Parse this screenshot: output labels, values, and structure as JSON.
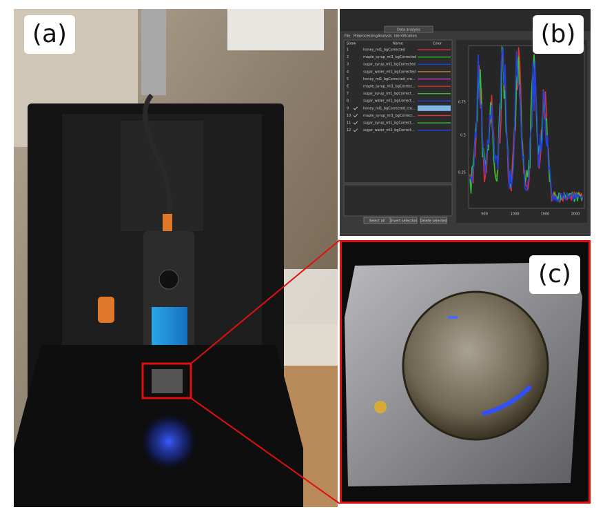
{
  "panels": {
    "a": {
      "label": "(a)"
    },
    "b": {
      "label": "(b)",
      "window_title": "Data analysis",
      "menu": [
        "File",
        "Preprocessing",
        "Analysis",
        "Identification"
      ],
      "table": {
        "headers": [
          "Show",
          "Name",
          "Color"
        ],
        "rows": [
          {
            "index": "1",
            "name": "honey_ml1_bgCorrected",
            "color": "#e03030",
            "checked": false
          },
          {
            "index": "2",
            "name": "maple_syrup_ml1_bgCorrected",
            "color": "#30c030",
            "checked": false
          },
          {
            "index": "3",
            "name": "sugar_syrup_ml1_bgCorrected",
            "color": "#2040e0",
            "checked": false
          },
          {
            "index": "4",
            "name": "sugar_water_ml1_bgCorrected",
            "color": "#c08020",
            "checked": false
          },
          {
            "index": "5",
            "name": "honey_ml1_bgCorrected_cro...",
            "color": "#d040d0",
            "checked": false
          },
          {
            "index": "6",
            "name": "maple_syrup_ml1_bgCorrect...",
            "color": "#e03030",
            "checked": false
          },
          {
            "index": "7",
            "name": "sugar_syrup_ml1_bgCorrect...",
            "color": "#30c030",
            "checked": false
          },
          {
            "index": "8",
            "name": "sugar_water_ml1_bgCorrect...",
            "color": "#2040e0",
            "checked": false
          },
          {
            "index": "9",
            "name": "honey_ml1_bgCorrected_cro...",
            "color": "#7fb8e8",
            "checked": true
          },
          {
            "index": "10",
            "name": "maple_syrup_ml1_bgCorrect...",
            "color": "#e03030",
            "checked": true
          },
          {
            "index": "11",
            "name": "sugar_syrup_ml1_bgCorrect...",
            "color": "#30c030",
            "checked": true
          },
          {
            "index": "12",
            "name": "sugar_water_ml1_bgCorrect...",
            "color": "#2040e0",
            "checked": true
          }
        ]
      },
      "buttons": [
        "Select all",
        "Invert selection",
        "Delete selected"
      ],
      "plot": {
        "y_labels": [
          "0.75",
          "0.5",
          "0.25"
        ],
        "x_labels": [
          "500",
          "1000",
          "1500",
          "2000"
        ]
      }
    },
    "c": {
      "label": "(c)"
    }
  }
}
